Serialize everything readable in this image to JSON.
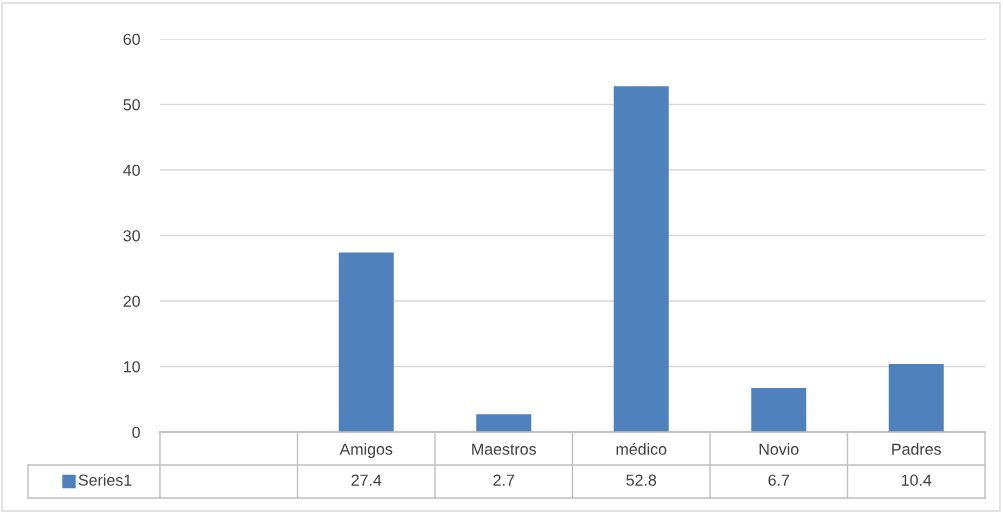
{
  "chart_data": {
    "type": "bar",
    "categories": [
      null,
      "Amigos",
      "Maestros",
      "médico",
      "Novio",
      "Padres"
    ],
    "series": [
      {
        "name": "Series1",
        "color": "#4f81bd",
        "values": [
          null,
          27.4,
          2.7,
          52.8,
          6.7,
          10.4
        ]
      }
    ],
    "ylim": [
      0,
      60
    ],
    "yticks": [
      0,
      10,
      20,
      30,
      40,
      50,
      60
    ],
    "grid": "y",
    "legend": "bottom",
    "data_labels": true
  }
}
